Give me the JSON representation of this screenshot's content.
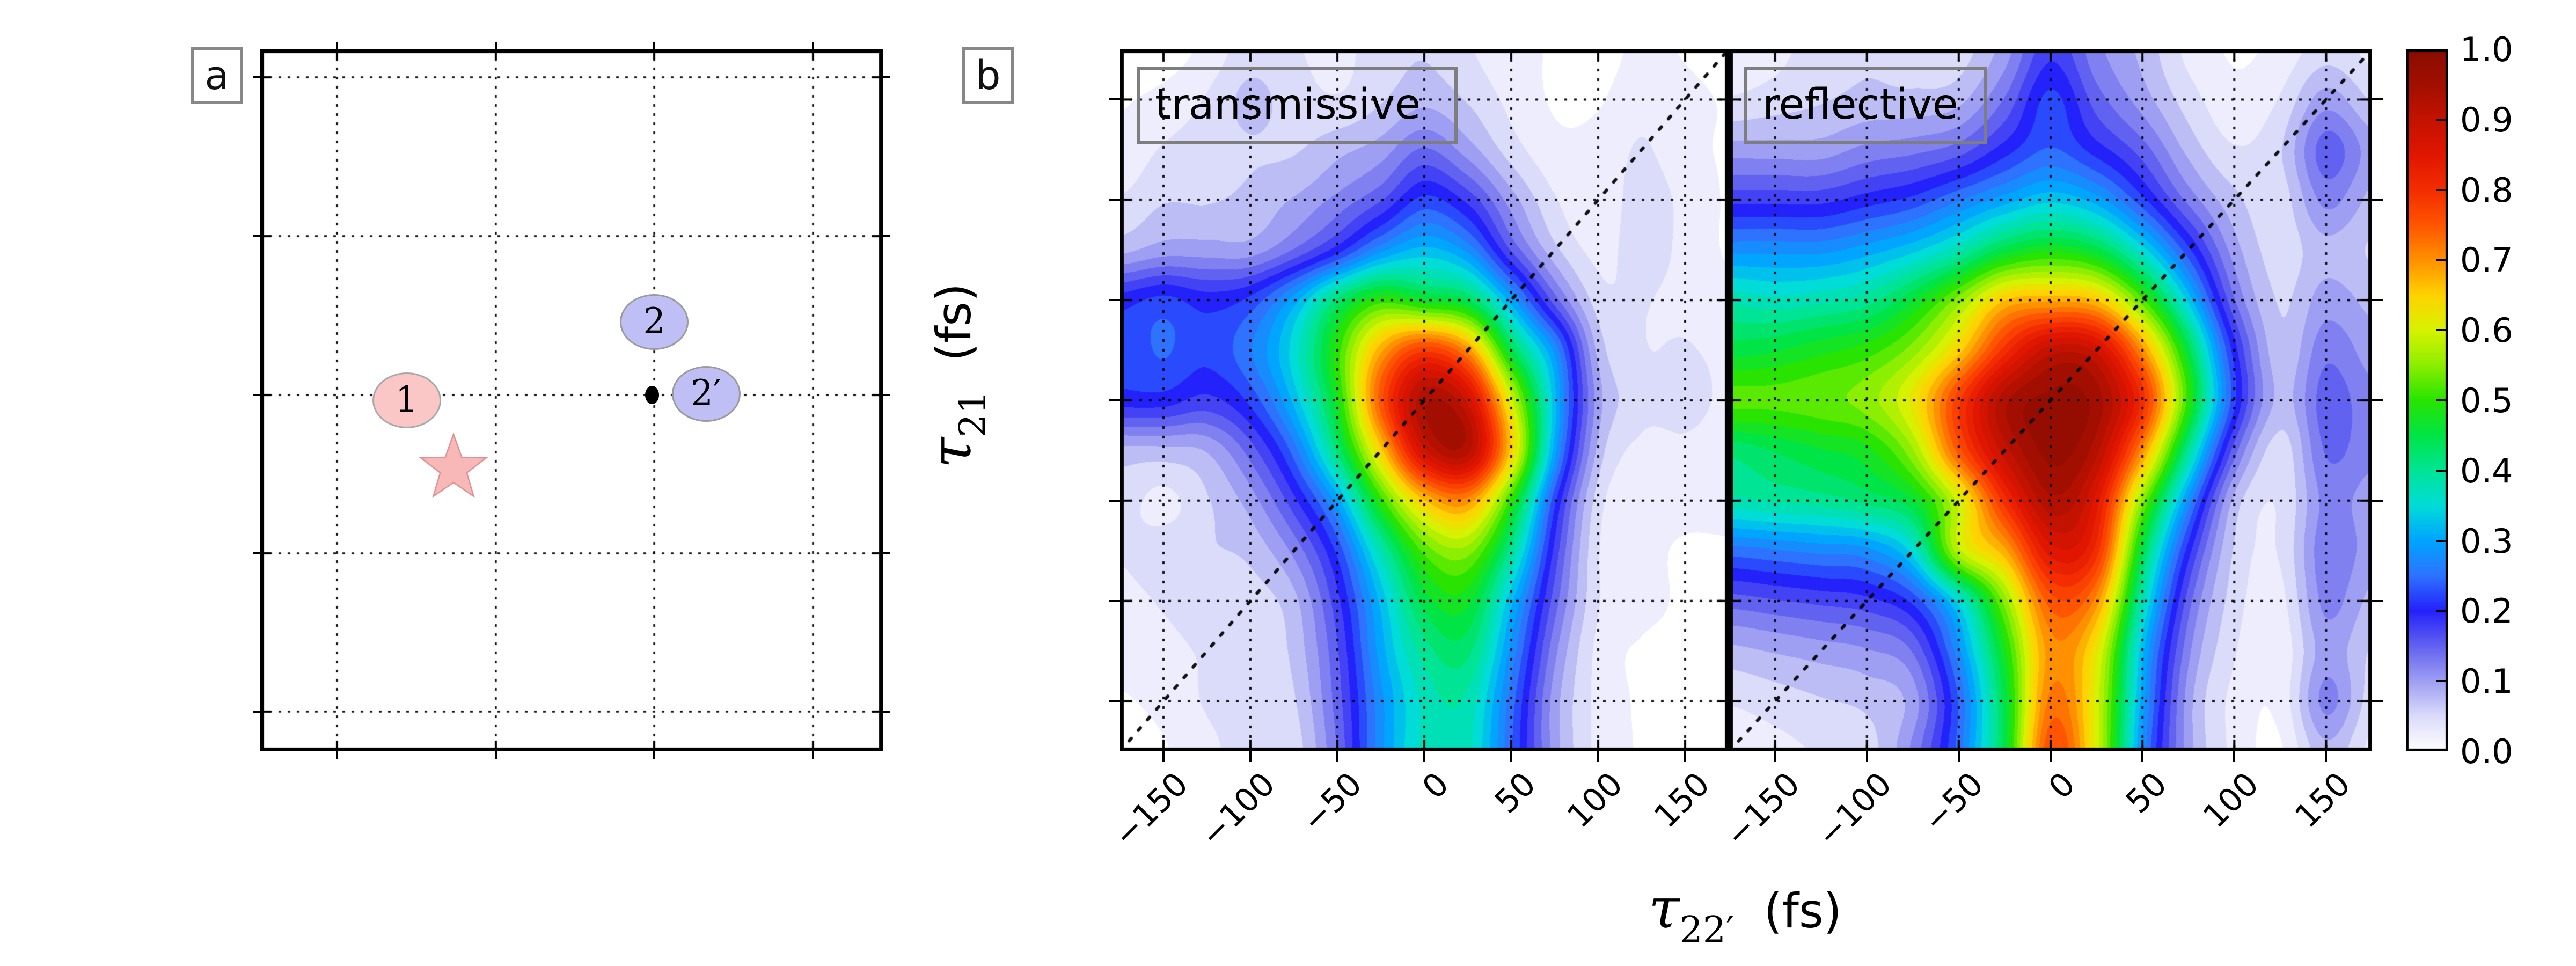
{
  "figure": {
    "panel_a_letter": "a",
    "panel_b_letter": "b",
    "background": "#ffffff"
  },
  "panel_a": {
    "markers": [
      {
        "label": "1",
        "type": "circle",
        "fill": "#fbc6c6",
        "stroke": "#a8a8a8",
        "fx": 0.235,
        "fy": 0.5
      },
      {
        "label": "2",
        "type": "circle",
        "fill": "#bfbff5",
        "stroke": "#9a9a9a",
        "fx": 0.633,
        "fy": 0.388
      },
      {
        "label": "2′",
        "type": "circle",
        "fill": "#bfbff5",
        "stroke": "#9a9a9a",
        "fx": 0.716,
        "fy": 0.491
      },
      {
        "label": "",
        "type": "dot",
        "fill": "#000000",
        "stroke": "#000000",
        "fx": 0.629,
        "fy": 0.492
      },
      {
        "label": "",
        "type": "star",
        "fill": "#f9b8b8",
        "stroke": "#e09090",
        "fx": 0.31,
        "fy": 0.597
      }
    ],
    "grid_fractions": {
      "vertical": [
        0.1233,
        0.3784,
        0.6328,
        0.8879
      ],
      "horizontal": [
        0.0398,
        0.2661,
        0.4924,
        0.7179,
        0.9434
      ]
    }
  },
  "panel_b": {
    "plots": [
      {
        "title": "transmissive"
      },
      {
        "title": "reflective"
      }
    ],
    "x_axis": {
      "tick_values": [
        -150,
        -100,
        -50,
        0,
        50,
        100,
        150
      ],
      "tick_labels": [
        "−150",
        "−100",
        "−50",
        "0",
        "50",
        "100",
        "150"
      ],
      "label_tau": "τ",
      "label_sub": "22′",
      "label_unit": "(fs)"
    },
    "y_axis": {
      "label_tau": "τ",
      "label_sub": "21",
      "label_unit": "(fs)"
    }
  },
  "colorbar": {
    "tick_labels": [
      "1.0",
      "0.9",
      "0.8",
      "0.7",
      "0.6",
      "0.5",
      "0.4",
      "0.3",
      "0.2",
      "0.1",
      "0.0"
    ],
    "range": [
      0.0,
      1.0
    ]
  },
  "chart_data": {
    "type": "heatmap",
    "title": "",
    "xlabel": "tau_22' (fs)",
    "ylabel": "tau_21 (fs)",
    "x_range": [
      -175,
      175
    ],
    "y_range": [
      -175,
      175
    ],
    "grid_step_fs": 25,
    "gridlines_fs": [
      -150,
      -100,
      -50,
      0,
      50,
      100,
      150
    ],
    "diagonal": "dotted line y = x on both panels",
    "legend_position": "colorbar right, 0.0 bottom to 1.0 top",
    "colormap_stops": [
      [
        0.0,
        255,
        255,
        255
      ],
      [
        0.05,
        219,
        219,
        250
      ],
      [
        0.1,
        158,
        158,
        242
      ],
      [
        0.15,
        98,
        98,
        240
      ],
      [
        0.2,
        36,
        34,
        250
      ],
      [
        0.25,
        45,
        115,
        255
      ],
      [
        0.3,
        0,
        165,
        255
      ],
      [
        0.35,
        0,
        220,
        215
      ],
      [
        0.4,
        0,
        228,
        150
      ],
      [
        0.45,
        0,
        228,
        70
      ],
      [
        0.5,
        40,
        228,
        0
      ],
      [
        0.55,
        140,
        238,
        0
      ],
      [
        0.6,
        215,
        242,
        0
      ],
      [
        0.65,
        255,
        210,
        0
      ],
      [
        0.7,
        255,
        145,
        0
      ],
      [
        0.75,
        255,
        85,
        0
      ],
      [
        0.8,
        243,
        45,
        0
      ],
      [
        0.85,
        224,
        22,
        0
      ],
      [
        0.9,
        196,
        18,
        0
      ],
      [
        0.95,
        162,
        15,
        0
      ],
      [
        1.0,
        136,
        12,
        0
      ]
    ],
    "series": [
      {
        "name": "transmissive",
        "rows_y_top_to_bottom": [
          175,
          150,
          125,
          100,
          75,
          50,
          25,
          0,
          -25,
          -50,
          -75,
          -100,
          -125,
          -150,
          -175
        ],
        "cols_x_left_to_right": [
          -175,
          -150,
          -125,
          -100,
          -75,
          -50,
          -25,
          0,
          25,
          50,
          75,
          100,
          125,
          150,
          175
        ],
        "values": [
          [
            0.0,
            0.0,
            0.02,
            0.05,
            0.04,
            0.03,
            0.05,
            0.06,
            0.04,
            0.02,
            0.01,
            0.0,
            0.02,
            0.01,
            0.0
          ],
          [
            0.01,
            0.02,
            0.04,
            0.07,
            0.05,
            0.04,
            0.06,
            0.08,
            0.06,
            0.03,
            0.01,
            0.01,
            0.03,
            0.02,
            0.01
          ],
          [
            0.02,
            0.04,
            0.05,
            0.06,
            0.06,
            0.08,
            0.1,
            0.14,
            0.1,
            0.05,
            0.02,
            0.02,
            0.04,
            0.02,
            0.01
          ],
          [
            0.04,
            0.06,
            0.06,
            0.07,
            0.09,
            0.12,
            0.16,
            0.22,
            0.18,
            0.1,
            0.04,
            0.02,
            0.05,
            0.03,
            0.01
          ],
          [
            0.08,
            0.1,
            0.1,
            0.1,
            0.14,
            0.2,
            0.28,
            0.32,
            0.28,
            0.16,
            0.07,
            0.03,
            0.05,
            0.03,
            0.01
          ],
          [
            0.2,
            0.22,
            0.2,
            0.22,
            0.3,
            0.42,
            0.5,
            0.47,
            0.44,
            0.3,
            0.15,
            0.05,
            0.04,
            0.03,
            0.02
          ],
          [
            0.22,
            0.24,
            0.22,
            0.26,
            0.35,
            0.5,
            0.68,
            0.78,
            0.7,
            0.45,
            0.28,
            0.08,
            0.04,
            0.04,
            0.03
          ],
          [
            0.2,
            0.2,
            0.18,
            0.22,
            0.32,
            0.48,
            0.75,
            0.93,
            0.88,
            0.6,
            0.32,
            0.1,
            0.05,
            0.05,
            0.03
          ],
          [
            0.08,
            0.08,
            0.09,
            0.15,
            0.25,
            0.42,
            0.65,
            0.88,
            0.92,
            0.65,
            0.3,
            0.08,
            0.03,
            0.03,
            0.02
          ],
          [
            0.05,
            0.03,
            0.06,
            0.1,
            0.18,
            0.3,
            0.5,
            0.66,
            0.7,
            0.5,
            0.22,
            0.05,
            0.02,
            0.02,
            0.02
          ],
          [
            0.04,
            0.05,
            0.06,
            0.07,
            0.12,
            0.22,
            0.38,
            0.52,
            0.55,
            0.4,
            0.18,
            0.04,
            0.02,
            0.01,
            0.01
          ],
          [
            0.03,
            0.04,
            0.05,
            0.05,
            0.08,
            0.18,
            0.32,
            0.45,
            0.47,
            0.32,
            0.15,
            0.04,
            0.02,
            0.01,
            0.01
          ],
          [
            0.02,
            0.03,
            0.04,
            0.04,
            0.07,
            0.16,
            0.3,
            0.4,
            0.42,
            0.28,
            0.12,
            0.03,
            0.01,
            0.01,
            0.01
          ],
          [
            0.01,
            0.02,
            0.04,
            0.05,
            0.06,
            0.15,
            0.28,
            0.37,
            0.38,
            0.25,
            0.1,
            0.03,
            0.01,
            0.01,
            0.01
          ],
          [
            0.0,
            0.01,
            0.03,
            0.05,
            0.05,
            0.14,
            0.28,
            0.37,
            0.37,
            0.24,
            0.1,
            0.03,
            0.01,
            0.0,
            0.0
          ]
        ]
      },
      {
        "name": "reflective",
        "rows_y_top_to_bottom": [
          175,
          150,
          125,
          100,
          75,
          50,
          25,
          0,
          -25,
          -50,
          -75,
          -100,
          -125,
          -150,
          -175
        ],
        "cols_x_left_to_right": [
          -175,
          -150,
          -125,
          -100,
          -75,
          -50,
          -25,
          0,
          25,
          50,
          75,
          100,
          125,
          150,
          175
        ],
        "values": [
          [
            0.02,
            0.03,
            0.05,
            0.06,
            0.05,
            0.05,
            0.1,
            0.18,
            0.12,
            0.08,
            0.03,
            0.01,
            0.02,
            0.05,
            0.03
          ],
          [
            0.04,
            0.05,
            0.06,
            0.07,
            0.07,
            0.08,
            0.14,
            0.22,
            0.15,
            0.1,
            0.05,
            0.02,
            0.04,
            0.1,
            0.06
          ],
          [
            0.1,
            0.1,
            0.1,
            0.12,
            0.13,
            0.15,
            0.2,
            0.24,
            0.2,
            0.15,
            0.08,
            0.04,
            0.06,
            0.15,
            0.1
          ],
          [
            0.18,
            0.18,
            0.18,
            0.2,
            0.22,
            0.26,
            0.3,
            0.33,
            0.3,
            0.22,
            0.13,
            0.07,
            0.05,
            0.12,
            0.08
          ],
          [
            0.28,
            0.28,
            0.28,
            0.3,
            0.33,
            0.38,
            0.45,
            0.48,
            0.45,
            0.35,
            0.22,
            0.1,
            0.05,
            0.08,
            0.06
          ],
          [
            0.38,
            0.37,
            0.38,
            0.4,
            0.46,
            0.55,
            0.66,
            0.68,
            0.66,
            0.52,
            0.33,
            0.14,
            0.06,
            0.1,
            0.08
          ],
          [
            0.45,
            0.46,
            0.48,
            0.5,
            0.55,
            0.65,
            0.8,
            0.9,
            0.88,
            0.7,
            0.45,
            0.2,
            0.07,
            0.13,
            0.1
          ],
          [
            0.52,
            0.52,
            0.53,
            0.55,
            0.62,
            0.78,
            0.93,
            0.97,
            0.95,
            0.8,
            0.5,
            0.22,
            0.08,
            0.15,
            0.12
          ],
          [
            0.42,
            0.44,
            0.46,
            0.48,
            0.56,
            0.75,
            0.9,
            0.97,
            0.92,
            0.7,
            0.4,
            0.15,
            0.05,
            0.14,
            0.12
          ],
          [
            0.38,
            0.39,
            0.4,
            0.42,
            0.46,
            0.6,
            0.8,
            0.93,
            0.85,
            0.55,
            0.28,
            0.08,
            0.04,
            0.12,
            0.1
          ],
          [
            0.25,
            0.26,
            0.27,
            0.28,
            0.35,
            0.58,
            0.68,
            0.85,
            0.8,
            0.45,
            0.2,
            0.06,
            0.04,
            0.13,
            0.1
          ],
          [
            0.15,
            0.16,
            0.17,
            0.18,
            0.22,
            0.35,
            0.55,
            0.75,
            0.7,
            0.38,
            0.15,
            0.05,
            0.03,
            0.12,
            0.08
          ],
          [
            0.08,
            0.09,
            0.1,
            0.11,
            0.14,
            0.28,
            0.48,
            0.7,
            0.62,
            0.32,
            0.12,
            0.04,
            0.02,
            0.1,
            0.06
          ],
          [
            0.04,
            0.05,
            0.06,
            0.07,
            0.1,
            0.24,
            0.45,
            0.72,
            0.6,
            0.3,
            0.1,
            0.03,
            0.02,
            0.12,
            0.05
          ],
          [
            0.02,
            0.03,
            0.04,
            0.05,
            0.12,
            0.25,
            0.45,
            0.76,
            0.6,
            0.28,
            0.1,
            0.03,
            0.01,
            0.08,
            0.03
          ]
        ]
      }
    ]
  }
}
